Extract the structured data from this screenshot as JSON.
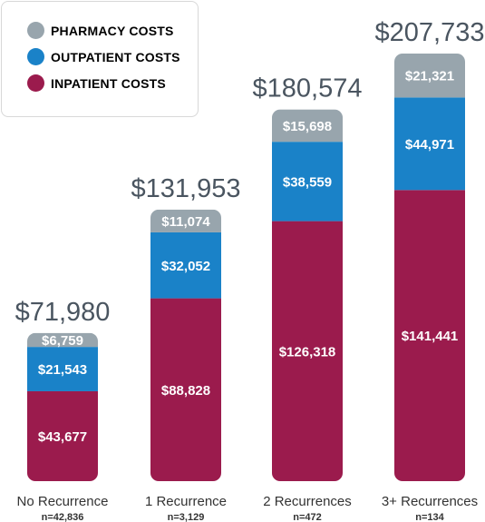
{
  "chart_data": {
    "type": "bar",
    "stacked": true,
    "categories": [
      "No Recurrence",
      "1 Recurrence",
      "2 Recurrences",
      "3+ Recurrences"
    ],
    "sample_sizes": [
      "n=42,836",
      "n=3,129",
      "n=472",
      "n=134"
    ],
    "totals": [
      71980,
      131953,
      180574,
      207733
    ],
    "total_labels": [
      "$71,980",
      "$131,953",
      "$180,574",
      "$207,733"
    ],
    "series": [
      {
        "name": "INPATIENT COSTS",
        "color": "#9b1b4d",
        "values": [
          43677,
          88828,
          126318,
          141441
        ],
        "labels": [
          "$43,677",
          "$88,828",
          "$126,318",
          "$141,441"
        ]
      },
      {
        "name": "OUTPATIENT COSTS",
        "color": "#1a82c8",
        "values": [
          21543,
          32052,
          38559,
          44971
        ],
        "labels": [
          "$21,543",
          "$32,052",
          "$38,559",
          "$44,971"
        ]
      },
      {
        "name": "PHARMACY COSTS",
        "color": "#98a5ad",
        "values": [
          6759,
          11074,
          15698,
          21321
        ],
        "labels": [
          "$6,759",
          "$11,074",
          "$15,698",
          "$21,321"
        ]
      }
    ],
    "legend": [
      {
        "name": "PHARMACY COSTS",
        "color": "#98a5ad"
      },
      {
        "name": "OUTPATIENT COSTS",
        "color": "#1a82c8"
      },
      {
        "name": "INPATIENT COSTS",
        "color": "#9b1b4d"
      }
    ],
    "legend_position": "top-left",
    "grid": false
  }
}
